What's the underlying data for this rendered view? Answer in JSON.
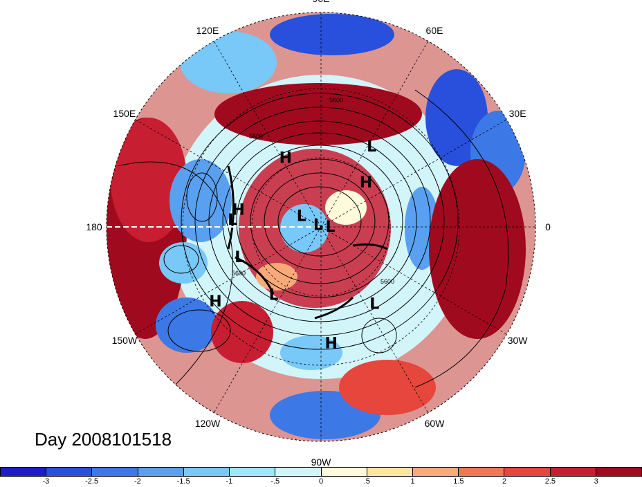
{
  "map": {
    "projection": "north-polar-stereographic",
    "longitude_labels": [
      {
        "text": "90E",
        "lon": 90
      },
      {
        "text": "60E",
        "lon": 60
      },
      {
        "text": "30E",
        "lon": 30
      },
      {
        "text": "0",
        "lon": 0
      },
      {
        "text": "30W",
        "lon": -30
      },
      {
        "text": "60W",
        "lon": -60
      },
      {
        "text": "90W",
        "lon": -90
      },
      {
        "text": "120W",
        "lon": -120
      },
      {
        "text": "150W",
        "lon": -150
      },
      {
        "text": "180",
        "lon": 180
      },
      {
        "text": "150E",
        "lon": 150
      },
      {
        "text": "120E",
        "lon": 120
      }
    ],
    "pressure_centers": [
      {
        "text": "L",
        "lon": 58,
        "lat": 42
      },
      {
        "text": "H",
        "lon": 117,
        "lat": 50
      },
      {
        "text": "H",
        "lon": 45,
        "lat": 57
      },
      {
        "text": "L",
        "lon": 175,
        "lat": 45
      },
      {
        "text": "H",
        "lon": 168,
        "lat": 47
      },
      {
        "text": "L",
        "lon": 150,
        "lat": 78
      },
      {
        "text": "L",
        "lon": -160,
        "lat": 46
      },
      {
        "text": "L",
        "lon": 140,
        "lat": 88
      },
      {
        "text": "L",
        "lon": 5,
        "lat": 85
      },
      {
        "text": "H",
        "lon": -145,
        "lat": 28
      },
      {
        "text": "L",
        "lon": -125,
        "lat": 48
      },
      {
        "text": "H",
        "lon": -85,
        "lat": 33
      },
      {
        "text": "L",
        "lon": -55,
        "lat": 43
      }
    ],
    "contour_labels": [
      "5600",
      "5600",
      "5600",
      "5600"
    ]
  },
  "title": "Day 2008101518",
  "colorbar": {
    "colors": [
      "#1e1ec8",
      "#2850dc",
      "#3c78e6",
      "#5aa0f0",
      "#78c8f8",
      "#a0e6fa",
      "#d2f5fa",
      "#fffadc",
      "#ffe6a0",
      "#faaa78",
      "#f07850",
      "#e6463c",
      "#c81e32",
      "#a00a1e"
    ],
    "tick_labels": [
      "-3",
      "-2.5",
      "-2",
      "-1.5",
      "-1",
      "-.5",
      "0",
      ".5",
      "1",
      "1.5",
      "2",
      "2.5",
      "3"
    ]
  }
}
